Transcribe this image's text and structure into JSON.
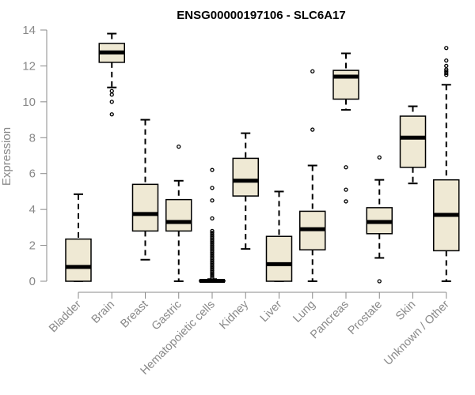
{
  "chart_data": {
    "type": "boxplot",
    "title": "ENSG00000197106 - SLC6A17",
    "xlabel": "",
    "ylabel": "Expression",
    "ylim": [
      0,
      14
    ],
    "yticks": [
      0,
      2,
      4,
      6,
      8,
      10,
      12,
      14
    ],
    "grid": false,
    "colors": {
      "box_fill": "#efe9d4",
      "stroke": "#000000",
      "axis": "#888888"
    },
    "categories": [
      "Bladder",
      "Brain",
      "Breast",
      "Gastric",
      "Hematopoietic cells",
      "Kidney",
      "Liver",
      "Lung",
      "Pancreas",
      "Prostate",
      "Skin",
      "Unknown / Other"
    ],
    "boxes": [
      {
        "name": "Bladder",
        "whisker_low": 0,
        "q1": 0,
        "median": 0.8,
        "q3": 2.35,
        "whisker_high": 4.85,
        "outliers": []
      },
      {
        "name": "Brain",
        "whisker_low": 10.8,
        "q1": 12.2,
        "median": 12.75,
        "q3": 13.25,
        "whisker_high": 13.8,
        "outliers": [
          10.6,
          10.4,
          10.0,
          9.3
        ]
      },
      {
        "name": "Breast",
        "whisker_low": 1.2,
        "q1": 2.8,
        "median": 3.75,
        "q3": 5.4,
        "whisker_high": 9.0,
        "outliers": []
      },
      {
        "name": "Gastric",
        "whisker_low": 0,
        "q1": 2.8,
        "median": 3.3,
        "q3": 4.55,
        "whisker_high": 5.6,
        "outliers": [
          7.5
        ]
      },
      {
        "name": "Hematopoietic cells",
        "whisker_low": 0,
        "q1": 0,
        "median": 0.02,
        "q3": 0.05,
        "whisker_high": 0.12,
        "outliers": [
          6.2,
          5.2,
          4.5,
          3.5,
          2.8,
          2.7,
          2.6,
          2.5,
          2.4,
          2.3,
          2.2,
          2.1,
          2.0,
          1.9,
          1.8,
          1.7,
          1.6,
          1.5,
          1.4,
          1.3,
          1.2,
          1.1,
          1.0,
          0.9,
          0.8,
          0.7,
          0.6,
          0.5,
          0.4,
          0.3,
          0.2
        ]
      },
      {
        "name": "Kidney",
        "whisker_low": 1.8,
        "q1": 4.75,
        "median": 5.6,
        "q3": 6.85,
        "whisker_high": 8.25,
        "outliers": []
      },
      {
        "name": "Liver",
        "whisker_low": 0,
        "q1": 0,
        "median": 0.95,
        "q3": 2.5,
        "whisker_high": 5.0,
        "outliers": []
      },
      {
        "name": "Lung",
        "whisker_low": 0,
        "q1": 1.75,
        "median": 2.9,
        "q3": 3.9,
        "whisker_high": 6.45,
        "outliers": [
          11.7,
          8.45
        ]
      },
      {
        "name": "Pancreas",
        "whisker_low": 9.55,
        "q1": 10.15,
        "median": 11.4,
        "q3": 11.75,
        "whisker_high": 12.7,
        "outliers": [
          6.35,
          5.1,
          4.45
        ]
      },
      {
        "name": "Prostate",
        "whisker_low": 1.3,
        "q1": 2.65,
        "median": 3.3,
        "q3": 4.1,
        "whisker_high": 5.65,
        "outliers": [
          6.9,
          0
        ]
      },
      {
        "name": "Skin",
        "whisker_low": 5.45,
        "q1": 6.35,
        "median": 8.0,
        "q3": 9.2,
        "whisker_high": 9.75,
        "outliers": []
      },
      {
        "name": "Unknown / Other",
        "whisker_low": 0,
        "q1": 1.7,
        "median": 3.7,
        "q3": 5.65,
        "whisker_high": 10.95,
        "outliers": [
          13.0,
          12.3,
          12.0,
          11.8,
          11.7,
          11.6,
          11.5
        ]
      }
    ]
  }
}
